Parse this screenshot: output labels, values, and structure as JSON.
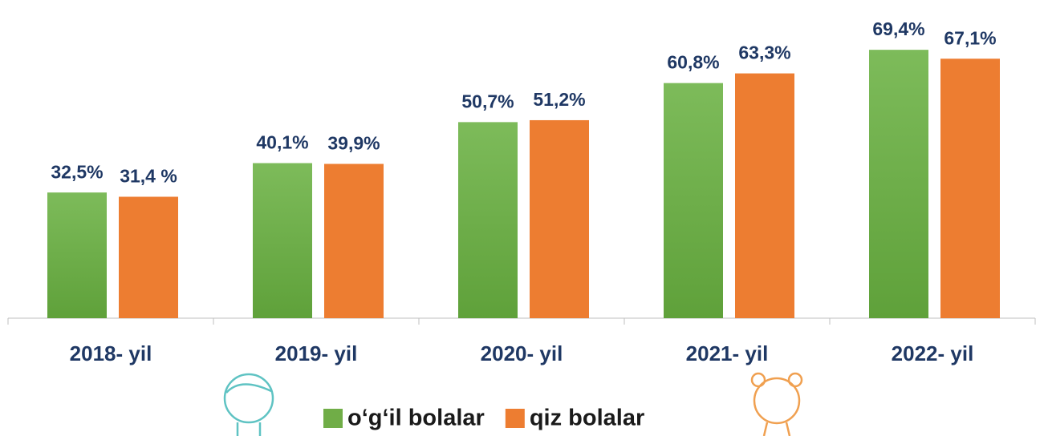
{
  "chart_data": {
    "type": "bar",
    "categories": [
      "2018- yil",
      "2019- yil",
      "2020- yil",
      "2021- yil",
      "2022- yil"
    ],
    "series": [
      {
        "name": "o‘g‘il bolalar",
        "color": "#70ad47",
        "values": [
          32.5,
          40.1,
          50.7,
          60.8,
          69.4
        ],
        "value_labels": [
          "32,5%",
          "40,1%",
          "50,7%",
          "60,8%",
          "69,4%"
        ]
      },
      {
        "name": "qiz bolalar",
        "color": "#ed7d31",
        "values": [
          31.4,
          39.9,
          51.2,
          63.3,
          67.1
        ],
        "value_labels": [
          "31,4 %",
          "39,9%",
          "51,2%",
          "63,3%",
          "67,1%"
        ]
      }
    ],
    "ylim": [
      0,
      80
    ]
  }
}
